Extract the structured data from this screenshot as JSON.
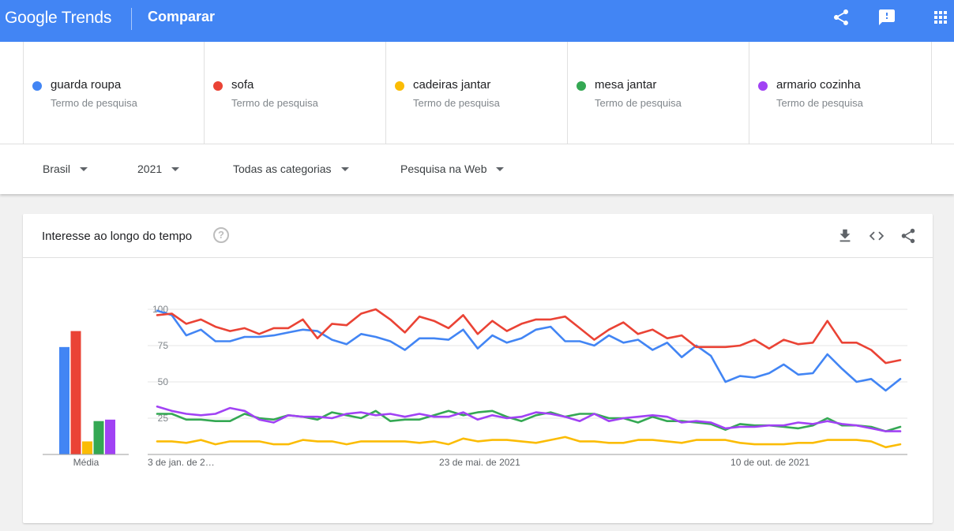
{
  "header": {
    "logo": "Google Trends",
    "title": "Comparar",
    "icons": [
      "share-icon",
      "feedback-icon",
      "apps-icon"
    ]
  },
  "terms": [
    {
      "name": "guarda roupa",
      "type": "Termo de pesquisa",
      "color": "#4285f4"
    },
    {
      "name": "sofa",
      "type": "Termo de pesquisa",
      "color": "#ea4335"
    },
    {
      "name": "cadeiras jantar",
      "type": "Termo de pesquisa",
      "color": "#fbbc04"
    },
    {
      "name": "mesa jantar",
      "type": "Termo de pesquisa",
      "color": "#34a853"
    },
    {
      "name": "armario cozinha",
      "type": "Termo de pesquisa",
      "color": "#a142f4"
    }
  ],
  "filters": {
    "region": "Brasil",
    "period": "2021",
    "category": "Todas as categorias",
    "search_type": "Pesquisa na Web"
  },
  "card": {
    "title": "Interesse ao longo do tempo",
    "help": "?",
    "icons": [
      "download-icon",
      "embed-icon",
      "share-icon"
    ]
  },
  "chart_data": {
    "type": "line",
    "ylim": [
      0,
      100
    ],
    "yticks": [
      25,
      50,
      75,
      100
    ],
    "x_tick_labels": [
      {
        "index": 0,
        "label": "3 de jan. de 2…"
      },
      {
        "index": 20,
        "label": "23 de mai. de 2021"
      },
      {
        "index": 40,
        "label": "10 de out. de 2021"
      }
    ],
    "average_label": "Média",
    "averages": [
      {
        "name": "guarda roupa",
        "value": 74
      },
      {
        "name": "sofa",
        "value": 85
      },
      {
        "name": "cadeiras jantar",
        "value": 9
      },
      {
        "name": "mesa jantar",
        "value": 23
      },
      {
        "name": "armario cozinha",
        "value": 24
      }
    ],
    "series": [
      {
        "name": "guarda roupa",
        "color": "#4285f4",
        "values": [
          99,
          96,
          82,
          86,
          78,
          78,
          81,
          81,
          82,
          84,
          86,
          85,
          79,
          76,
          83,
          81,
          78,
          72,
          80,
          80,
          79,
          86,
          73,
          82,
          77,
          80,
          86,
          88,
          78,
          78,
          75,
          82,
          77,
          79,
          72,
          77,
          67,
          75,
          68,
          50,
          54,
          53,
          56,
          62,
          55,
          56,
          69,
          59,
          50,
          52,
          44,
          52
        ]
      },
      {
        "name": "sofa",
        "color": "#ea4335",
        "values": [
          96,
          97,
          90,
          93,
          88,
          85,
          87,
          83,
          87,
          87,
          93,
          80,
          90,
          89,
          97,
          100,
          93,
          84,
          95,
          92,
          87,
          96,
          83,
          92,
          85,
          90,
          93,
          93,
          95,
          87,
          79,
          86,
          91,
          83,
          86,
          80,
          82,
          74,
          74,
          74,
          75,
          79,
          73,
          79,
          76,
          77,
          92,
          77,
          77,
          72,
          63,
          65
        ]
      },
      {
        "name": "cadeiras jantar",
        "color": "#fbbc04",
        "values": [
          9,
          9,
          8,
          10,
          7,
          9,
          9,
          9,
          7,
          7,
          10,
          9,
          9,
          7,
          9,
          9,
          9,
          9,
          8,
          9,
          7,
          11,
          9,
          10,
          10,
          9,
          8,
          10,
          12,
          9,
          9,
          8,
          8,
          10,
          10,
          9,
          8,
          10,
          10,
          10,
          8,
          7,
          7,
          7,
          8,
          8,
          10,
          10,
          10,
          9,
          5,
          7
        ]
      },
      {
        "name": "mesa jantar",
        "color": "#34a853",
        "values": [
          28,
          28,
          24,
          24,
          23,
          23,
          28,
          25,
          24,
          27,
          26,
          24,
          29,
          27,
          25,
          30,
          23,
          24,
          24,
          27,
          30,
          27,
          29,
          30,
          26,
          23,
          27,
          29,
          26,
          28,
          28,
          25,
          25,
          22,
          26,
          23,
          23,
          22,
          21,
          17,
          21,
          20,
          20,
          19,
          18,
          20,
          25,
          20,
          20,
          19,
          16,
          19
        ]
      },
      {
        "name": "armario cozinha",
        "color": "#a142f4",
        "values": [
          33,
          30,
          28,
          27,
          28,
          32,
          30,
          24,
          22,
          27,
          26,
          26,
          25,
          28,
          29,
          27,
          28,
          26,
          28,
          26,
          26,
          29,
          24,
          27,
          25,
          26,
          29,
          28,
          26,
          23,
          28,
          23,
          25,
          26,
          27,
          26,
          22,
          23,
          22,
          18,
          19,
          19,
          20,
          20,
          22,
          21,
          23,
          21,
          20,
          18,
          16,
          16
        ]
      }
    ]
  }
}
